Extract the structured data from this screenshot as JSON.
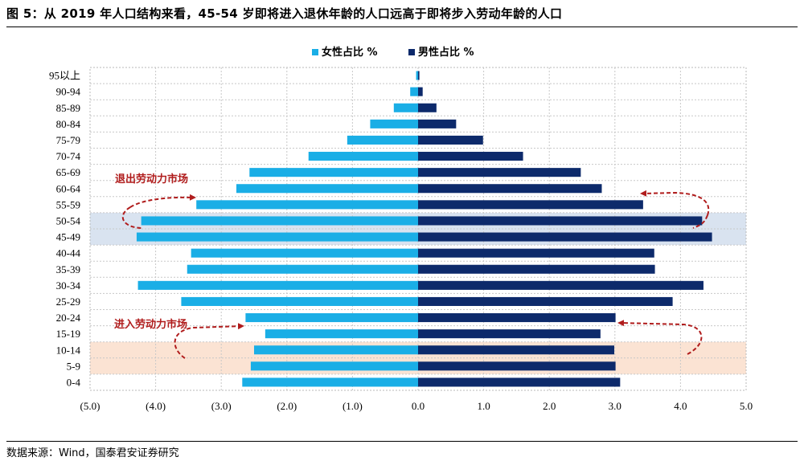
{
  "figure": {
    "title": "图 5：从 2019 年人口结构来看，45-54 岁即将进入退休年龄的人口远高于即将步入劳动年龄的人口",
    "source": "数据来源：Wind，国泰君安证券研究"
  },
  "colors": {
    "female": "#1aaee6",
    "male": "#0d2a6b",
    "highlight_blue": "#d9e3f0",
    "highlight_orange": "#fbe3d3",
    "annotation": "#b01c1c"
  },
  "chart_data": {
    "type": "bar",
    "orientation": "horizontal",
    "categories": [
      "95以上",
      "90-94",
      "85-89",
      "80-84",
      "75-79",
      "70-74",
      "65-69",
      "60-64",
      "55-59",
      "50-54",
      "45-49",
      "40-44",
      "35-39",
      "30-34",
      "25-29",
      "20-24",
      "15-19",
      "10-14",
      "5-9",
      "0-4"
    ],
    "series": [
      {
        "name": "女性占比 %",
        "values": [
          0.03,
          0.12,
          0.37,
          0.73,
          1.08,
          1.67,
          2.57,
          2.77,
          3.38,
          4.22,
          4.29,
          3.46,
          3.52,
          4.27,
          3.61,
          2.63,
          2.33,
          2.5,
          2.55,
          2.68
        ]
      },
      {
        "name": "男性占比 %",
        "values": [
          0.02,
          0.07,
          0.28,
          0.58,
          0.99,
          1.6,
          2.48,
          2.8,
          3.43,
          4.33,
          4.48,
          3.6,
          3.61,
          4.35,
          3.88,
          3.01,
          2.78,
          2.99,
          3.01,
          3.08
        ]
      }
    ],
    "xlim": [
      -5,
      5
    ],
    "xticks": [
      "(5.0)",
      "(4.0)",
      "(3.0)",
      "(2.0)",
      "(1.0)",
      "0.0",
      "1.0",
      "2.0",
      "3.0",
      "4.0",
      "5.0"
    ],
    "legend": "top-center",
    "grid": "dotted",
    "highlight_bands": [
      {
        "categories": [
          "50-54",
          "45-49"
        ],
        "color": "blue"
      },
      {
        "categories": [
          "10-14",
          "5-9"
        ],
        "color": "orange"
      }
    ],
    "annotations": [
      {
        "text": "退出劳动力市场"
      },
      {
        "text": "进入劳动力市场"
      }
    ]
  }
}
